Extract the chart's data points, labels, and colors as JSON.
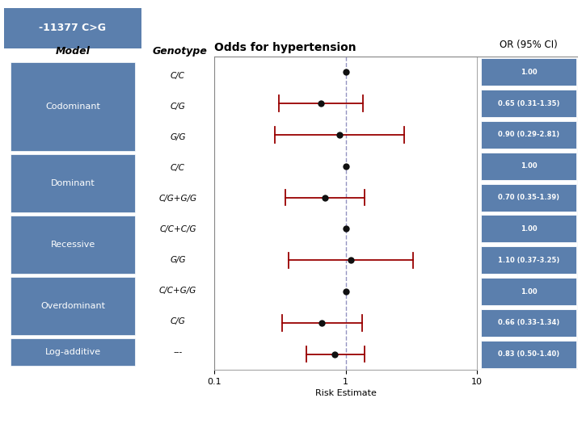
{
  "title": "-11377 C>G",
  "plot_title": "Odds for hypertension",
  "or_header": "OR (95% CI)",
  "xlabel": "Risk Estimate",
  "background_color": "#ffffff",
  "box_color": "#5b7fad",
  "dashed_line_color": "#8888bb",
  "point_color": "#111111",
  "ci_color": "#990000",
  "rows": [
    {
      "model": "Codominant",
      "genotype": "C/C",
      "or": 1.0,
      "lo": 1.0,
      "hi": 1.0,
      "label": "1.00",
      "ref": true
    },
    {
      "model": "Codominant",
      "genotype": "C/G",
      "or": 0.65,
      "lo": 0.31,
      "hi": 1.35,
      "label": "0.65 (0.31-1.35)",
      "ref": false
    },
    {
      "model": "Codominant",
      "genotype": "G/G",
      "or": 0.9,
      "lo": 0.29,
      "hi": 2.81,
      "label": "0.90 (0.29-2.81)",
      "ref": false
    },
    {
      "model": "Dominant",
      "genotype": "C/C",
      "or": 1.0,
      "lo": 1.0,
      "hi": 1.0,
      "label": "1.00",
      "ref": true
    },
    {
      "model": "Dominant",
      "genotype": "C/G+G/G",
      "or": 0.7,
      "lo": 0.35,
      "hi": 1.39,
      "label": "0.70 (0.35-1.39)",
      "ref": false
    },
    {
      "model": "Recessive",
      "genotype": "C/C+C/G",
      "or": 1.0,
      "lo": 1.0,
      "hi": 1.0,
      "label": "1.00",
      "ref": true
    },
    {
      "model": "Recessive",
      "genotype": "G/G",
      "or": 1.1,
      "lo": 0.37,
      "hi": 3.25,
      "label": "1.10 (0.37-3.25)",
      "ref": false
    },
    {
      "model": "Overdominant",
      "genotype": "C/C+G/G",
      "or": 1.0,
      "lo": 1.0,
      "hi": 1.0,
      "label": "1.00",
      "ref": true
    },
    {
      "model": "Overdominant",
      "genotype": "C/G",
      "or": 0.66,
      "lo": 0.33,
      "hi": 1.34,
      "label": "0.66 (0.33-1.34)",
      "ref": false
    },
    {
      "model": "Log-additive",
      "genotype": "---",
      "or": 0.83,
      "lo": 0.5,
      "hi": 1.4,
      "label": "0.83 (0.50-1.40)",
      "ref": false
    }
  ],
  "model_labels": [
    "Codominant",
    "Dominant",
    "Recessive",
    "Overdominant",
    "Log-additive"
  ],
  "model_row_indices": [
    0,
    3,
    5,
    7,
    9
  ],
  "xlim_log": [
    0.1,
    10
  ]
}
